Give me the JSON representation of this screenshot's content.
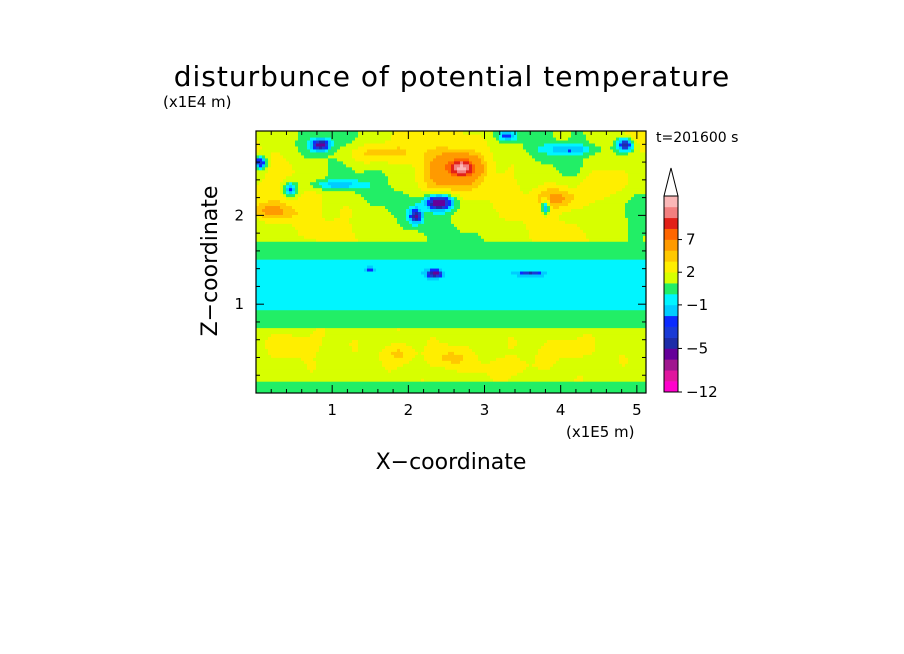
{
  "chart_data": {
    "type": "heatmap",
    "title": "disturbunce of potential temperature",
    "xlabel": "X−coordinate",
    "ylabel": "Z−coordinate",
    "x_unit": "(x1E5 m)",
    "y_unit": "(x1E4 m)",
    "time_label": "t=201600 s",
    "xlim": [
      0,
      5.12
    ],
    "ylim": [
      0,
      2.95
    ],
    "x_ticks": [
      "1",
      "2",
      "3",
      "4",
      "5"
    ],
    "y_ticks": [
      "1",
      "2"
    ],
    "colorbar": {
      "levels": [
        -12,
        -10,
        -8,
        -6,
        -5,
        -4,
        -3,
        -2,
        -1,
        0,
        1,
        2,
        3,
        4,
        7,
        8,
        9,
        10
      ],
      "colors": [
        "#ff00cc",
        "#e0169e",
        "#a0178f",
        "#660099",
        "#1e2ca8",
        "#1a3ad6",
        "#0b2bff",
        "#00ccff",
        "#00f5ff",
        "#22ee66",
        "#d7ff00",
        "#ffee00",
        "#ffc800",
        "#ff9a00",
        "#ff6600",
        "#e22018",
        "#f27f7f",
        "#fab7b7"
      ],
      "tick_labels": [
        "7",
        "2",
        "−1",
        "−5",
        "−12"
      ],
      "extend": "max"
    },
    "field_bands": [
      {
        "z_range": [
          0.0,
          0.12
        ],
        "value_range": "0 to 1",
        "description": "green/yellow near surface"
      },
      {
        "z_range": [
          0.12,
          0.75
        ],
        "value_range": "1 to 4",
        "description": "yellow with orange patches"
      },
      {
        "z_range": [
          0.75,
          0.95
        ],
        "value_range": "0 to 1",
        "description": "green band"
      },
      {
        "z_range": [
          0.95,
          1.5
        ],
        "value_range": "-1 to 0",
        "description": "cyan band with small dark-blue blobs near z=1.35"
      },
      {
        "z_range": [
          1.5,
          1.7
        ],
        "value_range": "0 to 1",
        "description": "green band"
      },
      {
        "z_range": [
          1.7,
          2.95
        ],
        "value_range": "-5 to 7",
        "description": "mixed yellow/orange with dark-blue cells, red maximum near x=2.7"
      }
    ],
    "extrema": [
      {
        "x": 2.7,
        "z": 2.55,
        "value": 7,
        "kind": "max"
      },
      {
        "x": 2.4,
        "z": 2.15,
        "value": -5,
        "kind": "min"
      },
      {
        "x": 0.9,
        "z": 2.8,
        "value": -4,
        "kind": "min"
      },
      {
        "x": 4.9,
        "z": 2.8,
        "value": -4,
        "kind": "min"
      }
    ]
  }
}
